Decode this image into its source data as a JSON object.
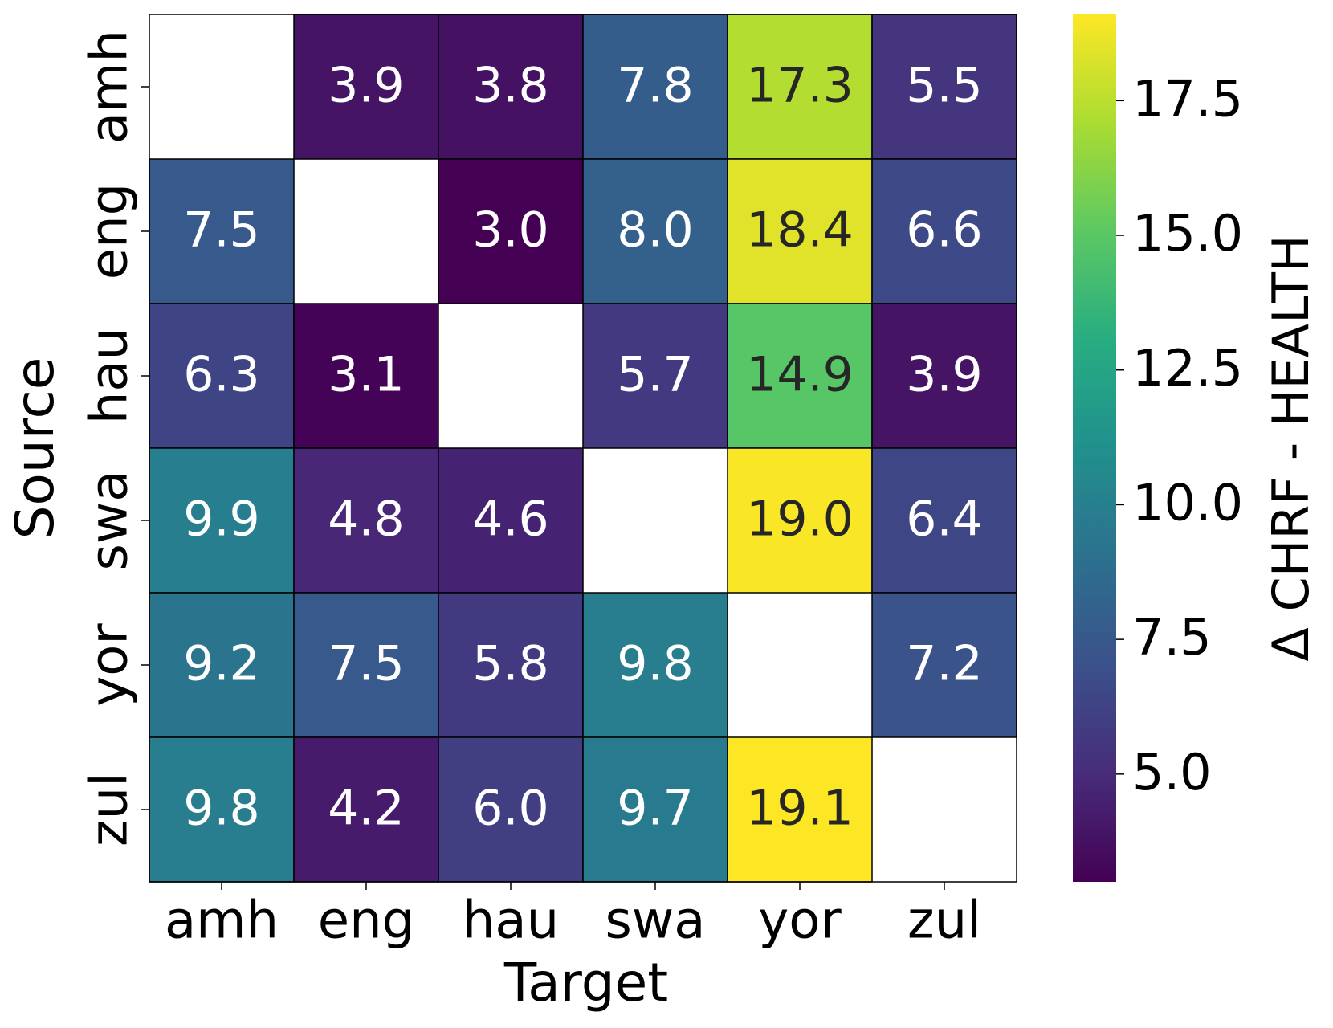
{
  "chart_data": {
    "type": "heatmap",
    "x_label": "Target",
    "y_label": "Source",
    "colorbar_label": "Δ CHRF - HEALTH",
    "colormap": "viridis",
    "columns": [
      "amh",
      "eng",
      "hau",
      "swa",
      "yor",
      "zul"
    ],
    "rows": [
      "amh",
      "eng",
      "hau",
      "swa",
      "yor",
      "zul"
    ],
    "values": [
      [
        null,
        3.9,
        3.8,
        7.8,
        17.3,
        5.5
      ],
      [
        7.5,
        null,
        3.0,
        8.0,
        18.4,
        6.6
      ],
      [
        6.3,
        3.1,
        null,
        5.7,
        14.9,
        3.9
      ],
      [
        9.9,
        4.8,
        4.6,
        null,
        19.0,
        6.4
      ],
      [
        9.2,
        7.5,
        5.8,
        9.8,
        null,
        7.2
      ],
      [
        9.8,
        4.2,
        6.0,
        9.7,
        19.1,
        null
      ]
    ],
    "value_labels": [
      [
        null,
        "3.9",
        "3.8",
        "7.8",
        "17.3",
        "5.5"
      ],
      [
        "7.5",
        null,
        "3.0",
        "8.0",
        "18.4",
        "6.6"
      ],
      [
        "6.3",
        "3.1",
        null,
        "5.7",
        "14.9",
        "3.9"
      ],
      [
        "9.9",
        "4.8",
        "4.6",
        null,
        "19.0",
        "6.4"
      ],
      [
        "9.2",
        "7.5",
        "5.8",
        "9.8",
        null,
        "7.2"
      ],
      [
        "9.8",
        "4.2",
        "6.0",
        "9.7",
        "19.1",
        null
      ]
    ],
    "clim": [
      3.0,
      19.1
    ],
    "cticks": [
      {
        "value": 5,
        "label": "5.0"
      },
      7.5,
      {
        "value": 10,
        "label": "10.0"
      },
      12.5,
      {
        "value": 15,
        "label": "15.0"
      },
      17.5
    ]
  }
}
